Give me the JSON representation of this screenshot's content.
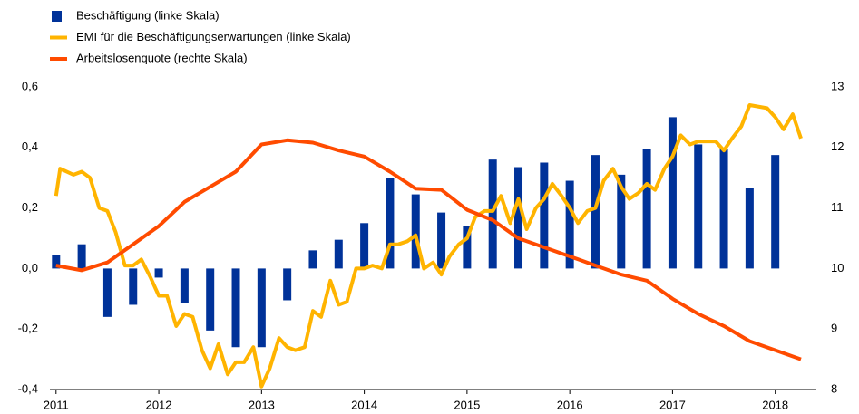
{
  "chart_data": {
    "type": "bar_line_combo",
    "xlim": [
      2010.94,
      2018.4
    ],
    "xticks": [
      2011,
      2012,
      2013,
      2014,
      2015,
      2016,
      2017,
      2018
    ],
    "ylim": [
      -0.4,
      0.6
    ],
    "yticks": [
      {
        "value": -0.4,
        "label": "-0,4"
      },
      {
        "value": -0.2,
        "label": "-0,2"
      },
      {
        "value": 0,
        "label": "0,0"
      },
      {
        "value": 0.2,
        "label": "0,2"
      },
      {
        "value": 0.4,
        "label": "0,4"
      },
      {
        "value": 0.6,
        "label": "0,6"
      }
    ],
    "y2lim": [
      8,
      13
    ],
    "y2ticks": [
      8,
      9,
      10,
      11,
      12,
      13
    ],
    "series": [
      {
        "name": "Beschäftigung (linke Skala)",
        "type": "bar",
        "color": "#003299",
        "x": [
          2011,
          2011.25,
          2011.5,
          2011.75,
          2012,
          2012.25,
          2012.5,
          2012.75,
          2013,
          2013.25,
          2013.5,
          2013.75,
          2014,
          2014.25,
          2014.5,
          2014.75,
          2015,
          2015.25,
          2015.5,
          2015.75,
          2016,
          2016.25,
          2016.5,
          2016.75,
          2017,
          2017.25,
          2017.5,
          2017.75,
          2018
        ],
        "values": [
          0.045,
          0.08,
          -0.16,
          -0.12,
          -0.03,
          -0.115,
          -0.205,
          -0.26,
          -0.26,
          -0.105,
          0.06,
          0.095,
          0.15,
          0.3,
          0.245,
          0.185,
          0.14,
          0.36,
          0.335,
          0.35,
          0.29,
          0.375,
          0.31,
          0.395,
          0.5,
          0.41,
          0.395,
          0.265,
          0.375
        ]
      },
      {
        "name": "EMI für die Beschäftigungserwartungen (linke Skala)",
        "type": "line",
        "color": "#FFB400",
        "x": [
          2011,
          2011.04,
          2011.17,
          2011.25,
          2011.33,
          2011.42,
          2011.5,
          2011.58,
          2011.67,
          2011.75,
          2011.83,
          2011.92,
          2012,
          2012.08,
          2012.17,
          2012.25,
          2012.33,
          2012.42,
          2012.5,
          2012.58,
          2012.67,
          2012.75,
          2012.83,
          2012.92,
          2013,
          2013.08,
          2013.17,
          2013.25,
          2013.33,
          2013.42,
          2013.5,
          2013.58,
          2013.67,
          2013.75,
          2013.83,
          2013.92,
          2014,
          2014.08,
          2014.17,
          2014.25,
          2014.33,
          2014.42,
          2014.5,
          2014.58,
          2014.67,
          2014.75,
          2014.83,
          2014.92,
          2015,
          2015.08,
          2015.17,
          2015.25,
          2015.33,
          2015.42,
          2015.5,
          2015.58,
          2015.67,
          2015.75,
          2015.83,
          2015.92,
          2016,
          2016.08,
          2016.17,
          2016.25,
          2016.33,
          2016.42,
          2016.5,
          2016.58,
          2016.67,
          2016.75,
          2016.83,
          2016.92,
          2017,
          2017.08,
          2017.17,
          2017.25,
          2017.42,
          2017.5,
          2017.58,
          2017.67,
          2017.75,
          2017.92,
          2018,
          2018.08,
          2018.17,
          2018.25
        ],
        "values": [
          0.24,
          0.33,
          0.31,
          0.32,
          0.3,
          0.2,
          0.19,
          0.12,
          0.01,
          0.01,
          0.03,
          -0.03,
          -0.09,
          -0.09,
          -0.19,
          -0.15,
          -0.16,
          -0.27,
          -0.33,
          -0.25,
          -0.35,
          -0.31,
          -0.31,
          -0.26,
          -0.39,
          -0.33,
          -0.23,
          -0.26,
          -0.27,
          -0.26,
          -0.14,
          -0.16,
          -0.04,
          -0.12,
          -0.11,
          0.0,
          0.0,
          0.01,
          0.0,
          0.08,
          0.08,
          0.09,
          0.11,
          0.0,
          0.02,
          -0.02,
          0.04,
          0.08,
          0.1,
          0.17,
          0.19,
          0.19,
          0.24,
          0.15,
          0.23,
          0.13,
          0.2,
          0.23,
          0.28,
          0.24,
          0.2,
          0.15,
          0.19,
          0.2,
          0.29,
          0.33,
          0.27,
          0.23,
          0.25,
          0.28,
          0.26,
          0.33,
          0.37,
          0.44,
          0.41,
          0.42,
          0.42,
          0.39,
          0.43,
          0.47,
          0.54,
          0.53,
          0.5,
          0.46,
          0.51,
          0.43
        ]
      },
      {
        "name": "Arbeitslosenquote (rechte Skala)",
        "type": "line",
        "axis": "y2",
        "color": "#FF4B00",
        "x": [
          2011,
          2011.25,
          2011.5,
          2011.75,
          2012,
          2012.25,
          2012.5,
          2012.75,
          2013,
          2013.25,
          2013.5,
          2013.75,
          2014,
          2014.25,
          2014.5,
          2014.75,
          2015,
          2015.25,
          2015.5,
          2015.75,
          2016,
          2016.25,
          2016.5,
          2016.75,
          2017,
          2017.25,
          2017.5,
          2017.75,
          2018,
          2018.25
        ],
        "values": [
          10.05,
          9.97,
          10.1,
          10.4,
          10.7,
          11.1,
          11.35,
          11.6,
          12.05,
          12.12,
          12.08,
          11.95,
          11.85,
          11.6,
          11.32,
          11.3,
          10.97,
          10.8,
          10.5,
          10.35,
          10.2,
          10.05,
          9.9,
          9.8,
          9.5,
          9.25,
          9.05,
          8.8,
          8.65,
          8.5
        ]
      }
    ]
  }
}
